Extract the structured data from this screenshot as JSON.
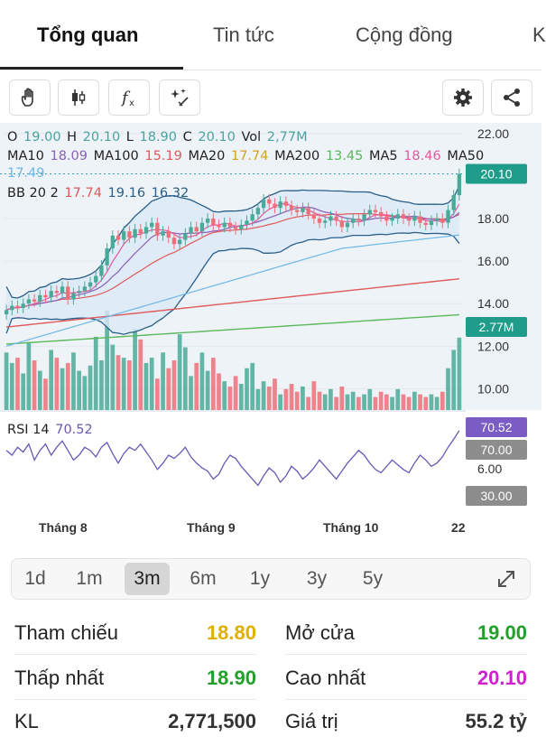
{
  "tabs": [
    {
      "label": "Tổng quan",
      "active": true
    },
    {
      "label": "Tin tức",
      "active": false
    },
    {
      "label": "Cộng đồng",
      "active": false
    },
    {
      "label": "K",
      "active": false
    }
  ],
  "toolbar": {
    "icons": [
      "hand-icon",
      "candlestick-icon",
      "function-icon",
      "sparkle-draw-icon",
      "gear-icon",
      "share-icon"
    ]
  },
  "legend": {
    "ohlc": {
      "o_label": "O",
      "o": "19.00",
      "h_label": "H",
      "h": "20.10",
      "l_label": "L",
      "l": "18.90",
      "c_label": "C",
      "c": "20.10",
      "vol_label": "Vol",
      "vol": "2,77M"
    },
    "ma": {
      "ma10_label": "MA10",
      "ma10": "18.09",
      "ma100_label": "MA100",
      "ma100": "15.19",
      "ma20_label": "MA20",
      "ma20": "17.74",
      "ma200_label": "MA200",
      "ma200": "13.45",
      "ma5_label": "MA5",
      "ma5": "18.46",
      "ma50_label": "MA50",
      "ma50": "17.49"
    },
    "bb": {
      "label": "BB 20 2",
      "v1": "17.74",
      "v2": "19.16",
      "v3": "16.32"
    },
    "rsi": {
      "label": "RSI 14",
      "value": "70.52"
    }
  },
  "colors": {
    "up": "#4aaa98",
    "down": "#ef6f78",
    "ohlc_value": "#4aa3a0",
    "ma10": "#8a5fb8",
    "ma100": "#e05a5a",
    "ma20": "#d4a11e",
    "ma200": "#5cb85c",
    "ma5": "#e05aa0",
    "ma50": "#6fb7e8",
    "bb": "#2a5f8a",
    "rsi": "#6b57b5",
    "rsi_badge": "#7a5cc4",
    "grey_badge": "#8d8d8d",
    "price_badge": "#1f9d8a",
    "green_val": "#22a02a",
    "yellow_val": "#e0b000",
    "magenta_val": "#d020d0"
  },
  "chart_data": {
    "type": "candlestick",
    "price_axis": {
      "ticks": [
        "22.00",
        "18.00",
        "16.00",
        "14.00",
        "12.00",
        "10.00"
      ],
      "range": [
        9.0,
        22.5
      ]
    },
    "rsi_axis": {
      "ticks": [
        "6.00"
      ],
      "levels": [
        "70.00",
        "30.00"
      ]
    },
    "x_labels": [
      "Tháng 8",
      "Tháng 9",
      "Tháng 10",
      "22"
    ],
    "badges": {
      "price": "20.10",
      "volume": "2.77M",
      "rsi": "70.52",
      "rsi_high": "70.00",
      "rsi_low": "30.00"
    },
    "closes": [
      13.7,
      13.9,
      13.8,
      14.0,
      14.2,
      14.1,
      14.4,
      14.3,
      14.6,
      14.5,
      14.8,
      14.2,
      14.5,
      14.6,
      14.8,
      15.0,
      15.3,
      15.8,
      16.6,
      17.2,
      17.0,
      17.4,
      17.1,
      17.5,
      17.3,
      17.6,
      17.8,
      17.2,
      17.4,
      17.1,
      16.8,
      17.0,
      17.3,
      17.6,
      17.4,
      17.8,
      18.0,
      17.7,
      17.6,
      17.8,
      17.6,
      17.5,
      17.7,
      17.9,
      18.2,
      18.5,
      18.9,
      18.7,
      18.5,
      18.8,
      18.6,
      18.4,
      18.3,
      18.5,
      18.2,
      18.0,
      17.8,
      17.9,
      18.1,
      17.9,
      17.6,
      17.8,
      18.0,
      17.9,
      18.2,
      18.4,
      18.3,
      18.1,
      17.9,
      18.0,
      18.2,
      18.0,
      17.9,
      18.1,
      17.8,
      17.7,
      17.9,
      18.0,
      17.8,
      18.4,
      19.1,
      20.1
    ],
    "volumes": [
      2.2,
      1.8,
      2.0,
      1.4,
      2.6,
      1.9,
      1.5,
      1.2,
      2.3,
      2.0,
      1.6,
      1.8,
      2.2,
      1.5,
      1.3,
      1.7,
      2.8,
      1.9,
      3.8,
      2.5,
      2.1,
      2.0,
      1.9,
      3.1,
      2.7,
      1.8,
      2.0,
      1.2,
      2.2,
      1.6,
      1.9,
      2.9,
      2.4,
      1.3,
      1.8,
      2.2,
      1.5,
      2.0,
      1.4,
      1.1,
      0.9,
      1.3,
      1.0,
      1.6,
      1.8,
      0.8,
      1.1,
      0.9,
      1.2,
      0.6,
      0.8,
      1.0,
      0.7,
      0.9,
      0.5,
      1.1,
      0.7,
      0.6,
      0.8,
      0.5,
      0.9,
      0.6,
      0.7,
      0.5,
      0.6,
      0.8,
      0.5,
      0.7,
      0.6,
      0.5,
      0.8,
      0.6,
      0.5,
      0.7,
      0.6,
      0.5,
      0.6,
      0.5,
      0.7,
      1.6,
      2.3,
      2.77
    ],
    "rsi": [
      58,
      55,
      60,
      57,
      62,
      52,
      58,
      62,
      55,
      60,
      64,
      58,
      52,
      55,
      60,
      58,
      54,
      60,
      63,
      56,
      50,
      56,
      60,
      58,
      62,
      57,
      52,
      46,
      50,
      55,
      53,
      56,
      60,
      54,
      50,
      47,
      45,
      40,
      43,
      50,
      55,
      53,
      48,
      44,
      40,
      36,
      42,
      47,
      44,
      38,
      42,
      48,
      45,
      40,
      43,
      47,
      52,
      48,
      44,
      40,
      45,
      50,
      54,
      58,
      55,
      50,
      46,
      44,
      48,
      52,
      49,
      46,
      44,
      50,
      55,
      52,
      48,
      50,
      54,
      60,
      65,
      70.52
    ]
  },
  "range_selector": {
    "options": [
      "1d",
      "1m",
      "3m",
      "6m",
      "1y",
      "3y",
      "5y"
    ],
    "selected": "3m"
  },
  "stats": {
    "ref_label": "Tham chiếu",
    "ref": "18.80",
    "open_label": "Mở cửa",
    "open": "19.00",
    "low_label": "Thấp nhất",
    "low": "18.90",
    "high_label": "Cao nhất",
    "high": "20.10",
    "vol_label": "KL",
    "vol": "2,771,500",
    "value_label": "Giá trị",
    "value": "55.2 tỷ"
  }
}
